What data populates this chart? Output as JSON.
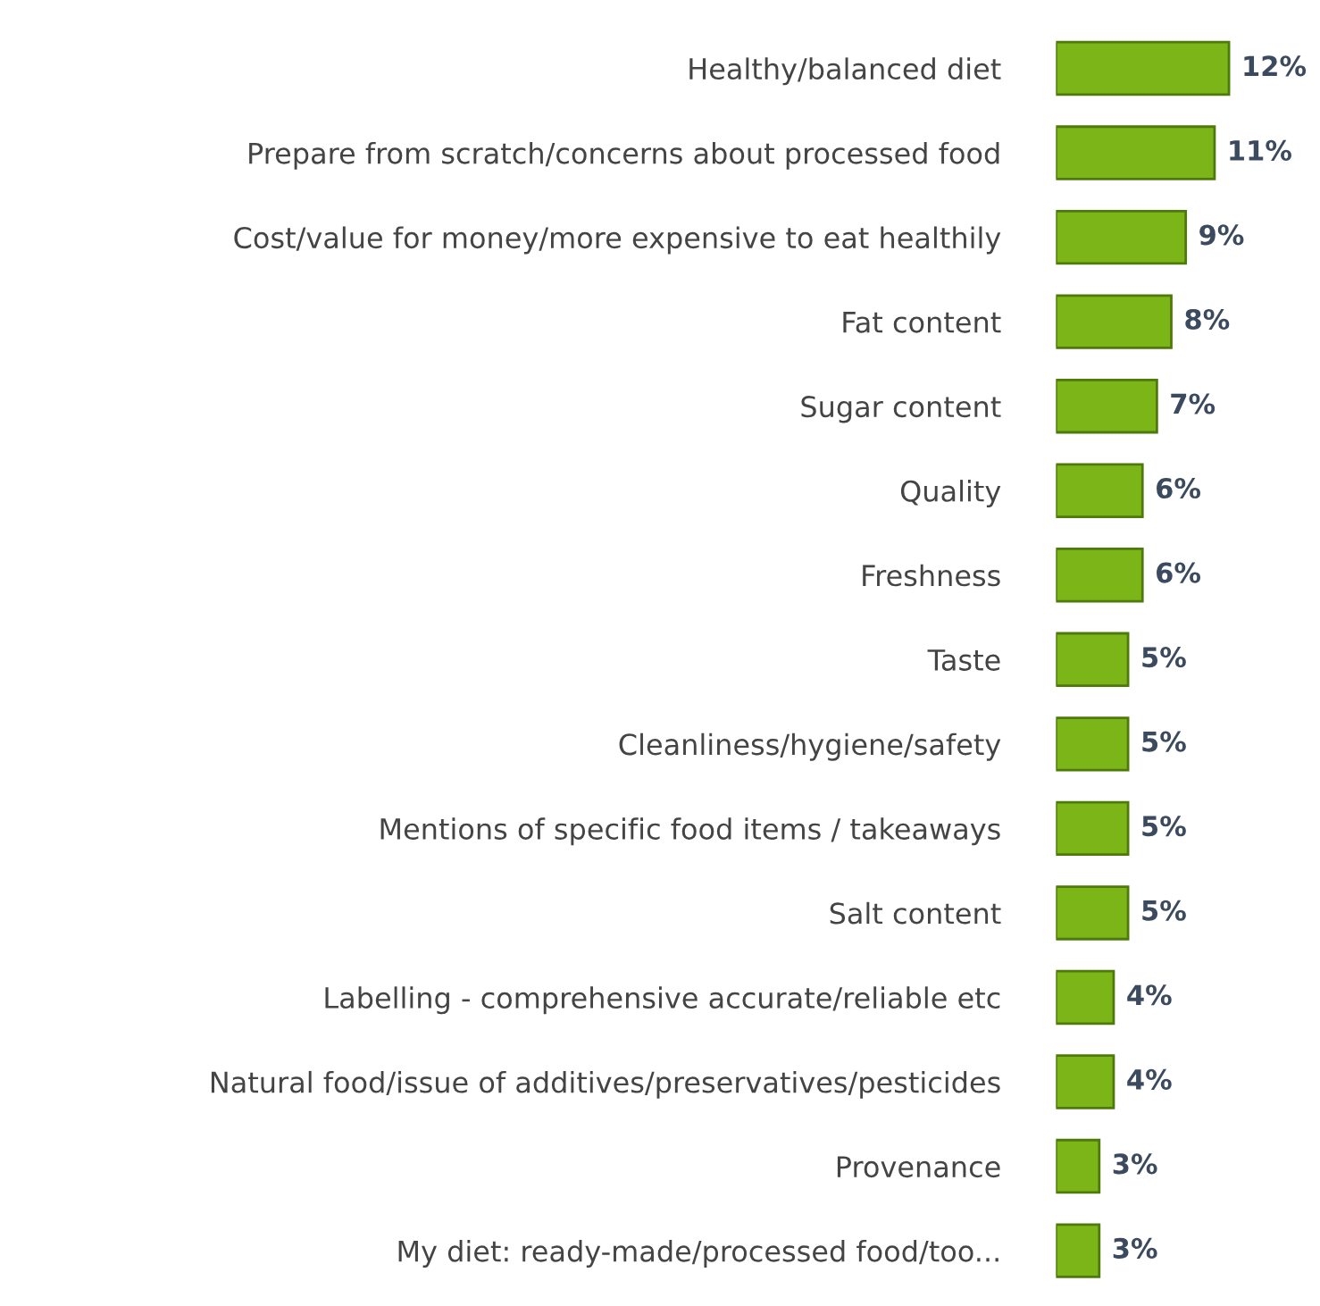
{
  "chart_data": {
    "type": "bar",
    "orientation": "horizontal",
    "categories": [
      "Healthy/balanced diet",
      "Prepare from scratch/concerns about processed food",
      "Cost/value for money/more expensive to eat healthily",
      "Fat content",
      "Sugar content",
      "Quality",
      "Freshness",
      "Taste",
      "Cleanliness/hygiene/safety",
      "Mentions of specific food items / takeaways",
      "Salt content",
      "Labelling - comprehensive accurate/reliable etc",
      "Natural food/issue of additives/preservatives/pesticides",
      "Provenance",
      "My diet: ready-made/processed food/too..."
    ],
    "values": [
      12,
      11,
      9,
      8,
      7,
      6,
      6,
      5,
      5,
      5,
      5,
      4,
      4,
      3,
      3
    ],
    "value_labels": [
      "12%",
      "11%",
      "9%",
      "8%",
      "7%",
      "6%",
      "6%",
      "5%",
      "5%",
      "5%",
      "5%",
      "4%",
      "4%",
      "3%",
      "3%"
    ],
    "color": "#7cb518",
    "tick_labels": "y",
    "grid": false,
    "legend": false
  }
}
